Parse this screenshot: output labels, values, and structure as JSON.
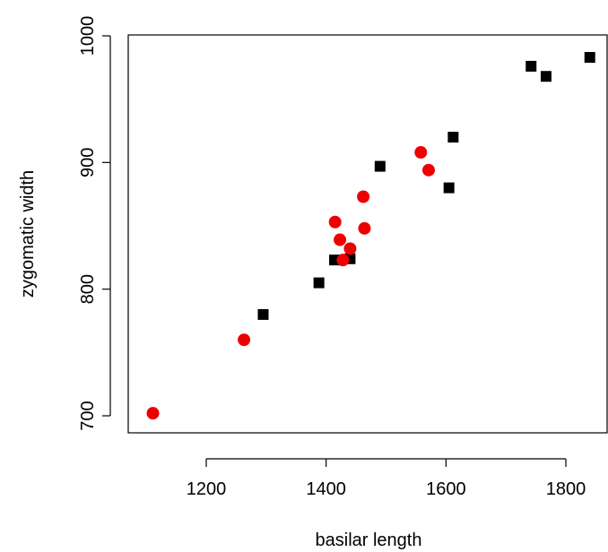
{
  "chart_data": {
    "type": "scatter",
    "title": "",
    "xlabel": "basilar length",
    "ylabel": "zygomatic width",
    "xlim": [
      1100,
      1845
    ],
    "ylim": [
      690,
      1000
    ],
    "x_ticks": [
      1200,
      1400,
      1600,
      1800
    ],
    "y_ticks": [
      700,
      800,
      900,
      1000
    ],
    "grid": false,
    "series": [
      {
        "marker": "square",
        "color": "#000000",
        "points": [
          {
            "x": 1295,
            "y": 780
          },
          {
            "x": 1388,
            "y": 805
          },
          {
            "x": 1414,
            "y": 823
          },
          {
            "x": 1440,
            "y": 824
          },
          {
            "x": 1490,
            "y": 897
          },
          {
            "x": 1605,
            "y": 880
          },
          {
            "x": 1612,
            "y": 920
          },
          {
            "x": 1742,
            "y": 976
          },
          {
            "x": 1767,
            "y": 968
          },
          {
            "x": 1840,
            "y": 983
          }
        ]
      },
      {
        "marker": "circle",
        "color": "#ee0000",
        "points": [
          {
            "x": 1111,
            "y": 702
          },
          {
            "x": 1263,
            "y": 760
          },
          {
            "x": 1415,
            "y": 853
          },
          {
            "x": 1423,
            "y": 839
          },
          {
            "x": 1428,
            "y": 823
          },
          {
            "x": 1440,
            "y": 832
          },
          {
            "x": 1462,
            "y": 873
          },
          {
            "x": 1464,
            "y": 848
          },
          {
            "x": 1558,
            "y": 908
          },
          {
            "x": 1571,
            "y": 894
          }
        ]
      }
    ]
  }
}
